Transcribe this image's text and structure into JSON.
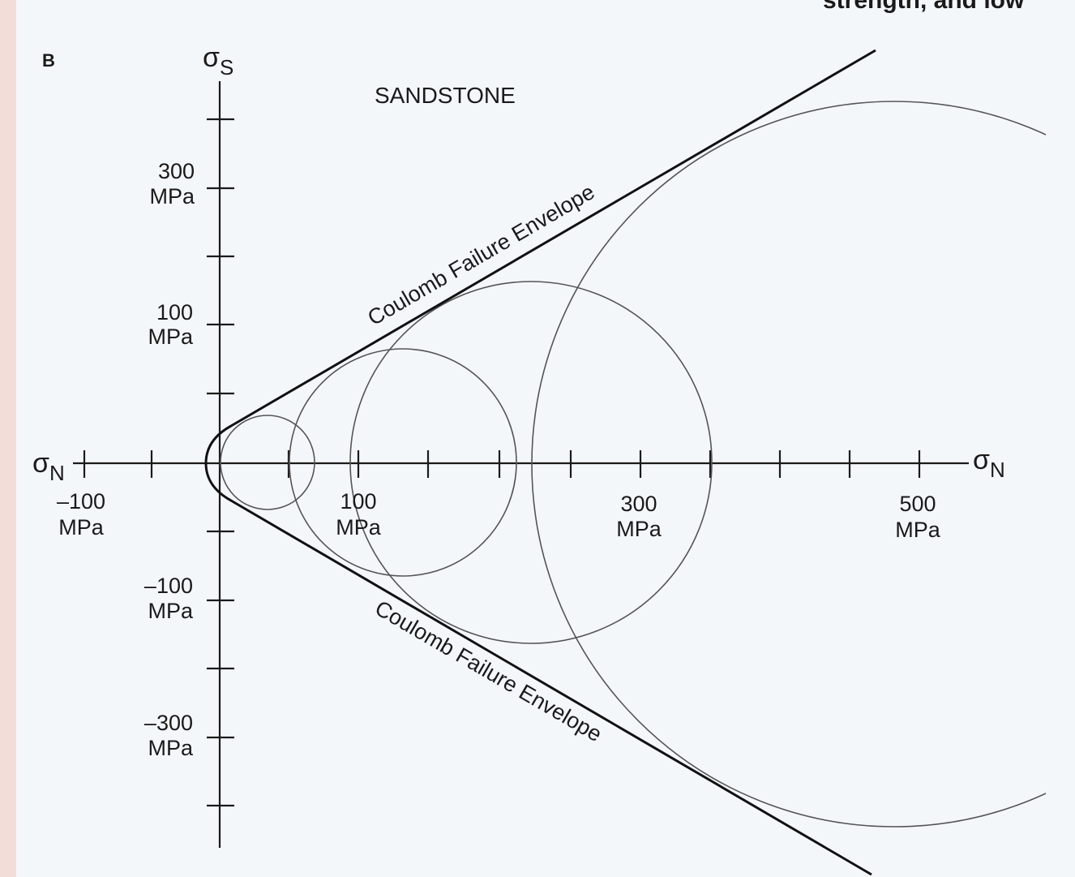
{
  "panel_letter": "B",
  "corner_text": "strength, and low",
  "title": "SANDSTONE",
  "y_axis": {
    "symbol": "σ",
    "subscript": "S"
  },
  "x_axis_left": {
    "symbol": "σ",
    "subscript": "N"
  },
  "x_axis_right": {
    "symbol": "σ",
    "subscript": "N"
  },
  "y_tick_labels": [
    {
      "value": "300",
      "unit": "MPa"
    },
    {
      "value": "100",
      "unit": "MPa"
    },
    {
      "value": "–100",
      "unit": "MPa"
    },
    {
      "value": "–300",
      "unit": "MPa"
    }
  ],
  "x_tick_labels": [
    {
      "value": "–100",
      "unit": "MPa"
    },
    {
      "value": "100",
      "unit": "MPa"
    },
    {
      "value": "300",
      "unit": "MPa"
    },
    {
      "value": "500",
      "unit": "MPa"
    }
  ],
  "envelope_labels": [
    "Coulomb Failure Envelope",
    "Coulomb Failure Envelope"
  ]
}
